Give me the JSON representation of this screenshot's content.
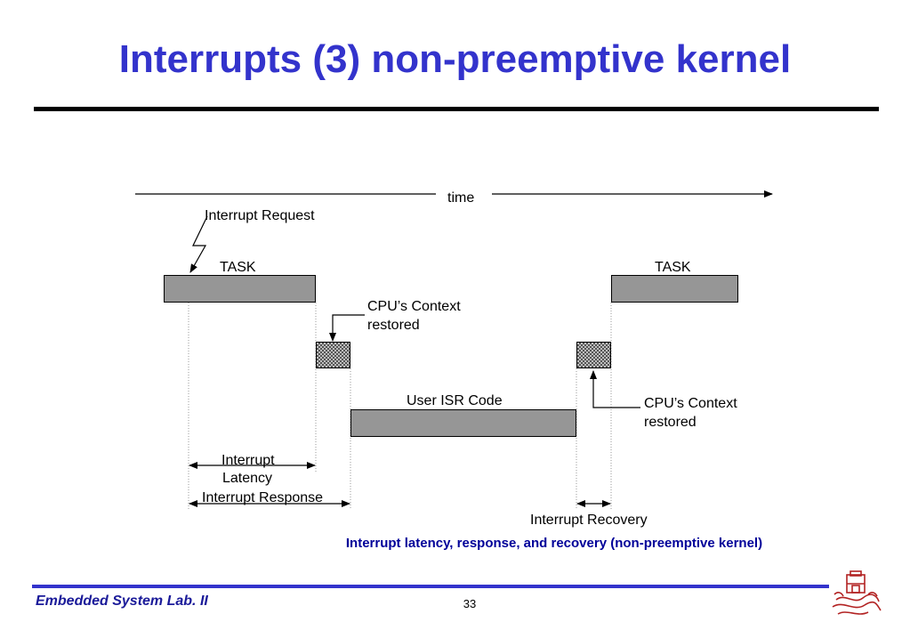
{
  "slide": {
    "title": "Interrupts (3)  non-preemptive kernel",
    "caption": "Interrupt latency,  response, and recovery (non-preemptive kernel)",
    "footer_text": "Embedded System Lab. II",
    "page_number": "33"
  },
  "diagram": {
    "time_label": "time",
    "interrupt_request_label": "Interrupt Request",
    "task_left_label": "TASK",
    "task_right_label": "TASK",
    "context_left_label": [
      "CPU’s Context",
      "restored"
    ],
    "context_right_label": [
      "CPU’s Context",
      "restored"
    ],
    "isr_label": "User ISR Code",
    "latency_label": [
      "Interrupt",
      "Latency"
    ],
    "response_label": "Interrupt Response",
    "recovery_label": "Interrupt Recovery"
  },
  "colors": {
    "title": "#3333cc",
    "caption": "#000099",
    "footer_rule": "#3333cc",
    "bar_fill": "#969696",
    "logo": "#b22222"
  }
}
